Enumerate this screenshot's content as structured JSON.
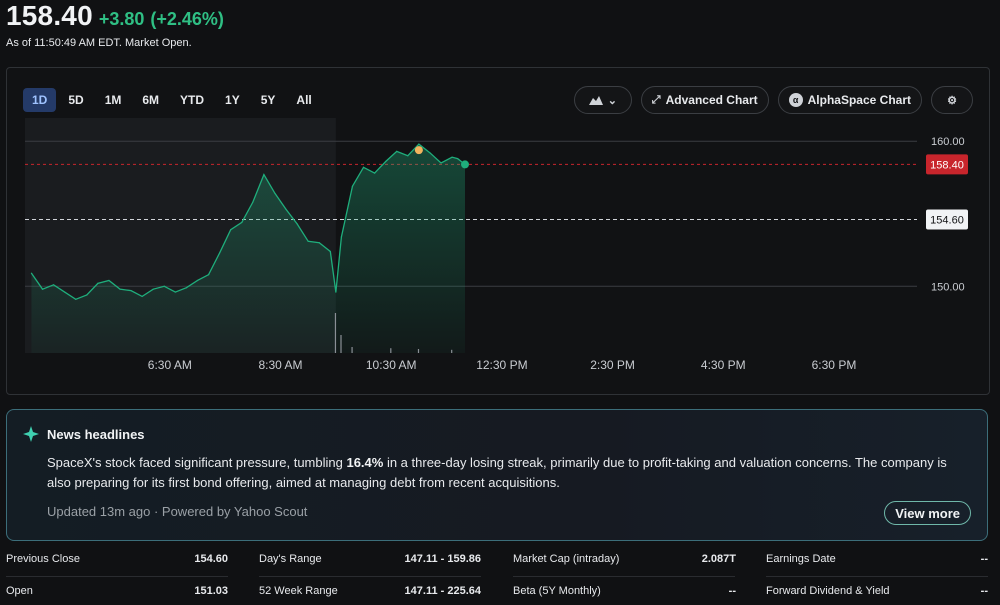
{
  "quote": {
    "price": "158.40",
    "change": "+3.80",
    "change_pct": "(+2.46%)",
    "as_of": "As of 11:50:49 AM EDT. Market Open."
  },
  "ranges": [
    "1D",
    "5D",
    "1M",
    "6M",
    "YTD",
    "1Y",
    "5Y",
    "All"
  ],
  "active_range": "1D",
  "toolbar": {
    "chart_type_icon": "mountain-chart-icon",
    "advanced_chart": "Advanced Chart",
    "alphaspace_chart": "AlphaSpace Chart",
    "settings_icon": "gear-icon"
  },
  "colors": {
    "up": "#2fbf84",
    "line": "#1fae7c",
    "current_price_tag": "#c8252c",
    "accent": "#243a68"
  },
  "chart_data": {
    "type": "line",
    "y_ticks": [
      "160.00",
      "150.00"
    ],
    "ylim": [
      145.4,
      161.6
    ],
    "x_ticks": [
      "6:30 AM",
      "8:30 AM",
      "10:30 AM",
      "12:30 PM",
      "2:30 PM",
      "4:30 PM",
      "6:30 PM"
    ],
    "current_price_label": "158.40",
    "current_price": 158.4,
    "previous_close_label": "154.60",
    "previous_close": 154.6,
    "series": [
      {
        "x": [
          "4:00",
          "4:12",
          "4:24",
          "4:36",
          "4:48",
          "5:00",
          "5:12",
          "5:24",
          "5:36",
          "5:48",
          "6:00",
          "6:12",
          "6:24",
          "6:36",
          "6:48",
          "7:00",
          "7:12",
          "7:24",
          "7:36",
          "7:48",
          "8:00",
          "8:12",
          "8:24",
          "8:36",
          "8:48",
          "9:00",
          "9:12",
          "9:24",
          "9:30",
          "9:36",
          "9:48",
          "10:00",
          "10:12",
          "10:24",
          "10:36",
          "10:48",
          "11:00",
          "11:12",
          "11:24",
          "11:36",
          "11:42",
          "11:50"
        ],
        "y": [
          150.9,
          149.8,
          150.1,
          149.6,
          149.1,
          149.4,
          150.2,
          150.4,
          149.8,
          149.7,
          149.3,
          149.8,
          150.0,
          149.6,
          149.9,
          150.4,
          150.8,
          152.3,
          153.9,
          154.4,
          155.8,
          157.7,
          156.4,
          155.3,
          154.3,
          153.1,
          153.0,
          152.4,
          149.6,
          153.4,
          156.9,
          158.2,
          157.8,
          158.6,
          159.3,
          159.0,
          159.8,
          159.2,
          158.5,
          158.9,
          158.8,
          158.4
        ]
      }
    ],
    "volume": [
      {
        "x": "9:30",
        "y": 1.0
      },
      {
        "x": "9:36",
        "y": 0.45
      },
      {
        "x": "9:48",
        "y": 0.15
      },
      {
        "x": "10:30",
        "y": 0.12
      },
      {
        "x": "11:00",
        "y": 0.1
      },
      {
        "x": "11:36",
        "y": 0.08
      }
    ]
  },
  "news": {
    "title": "News headlines",
    "body_pre": "SpaceX's stock faced significant pressure, tumbling ",
    "body_bold": "16.4%",
    "body_post": " in a three-day losing streak, primarily due to profit-taking and valuation concerns. The company is also preparing for its first bond offering, aimed at managing debt from recent acquisitions.",
    "footer": "Updated 13m ago · Powered by Yahoo Scout",
    "view_more": "View more"
  },
  "stats": [
    [
      {
        "label": "Previous Close",
        "value": "154.60"
      },
      {
        "label": "Day's Range",
        "value": "147.11 - 159.86"
      },
      {
        "label": "Market Cap (intraday)",
        "value": "2.087T"
      },
      {
        "label": "Earnings Date",
        "value": "--"
      }
    ],
    [
      {
        "label": "Open",
        "value": "151.03"
      },
      {
        "label": "52 Week Range",
        "value": "147.11 - 225.64"
      },
      {
        "label": "Beta (5Y Monthly)",
        "value": "--"
      },
      {
        "label": "Forward Dividend & Yield",
        "value": "--"
      }
    ]
  ]
}
